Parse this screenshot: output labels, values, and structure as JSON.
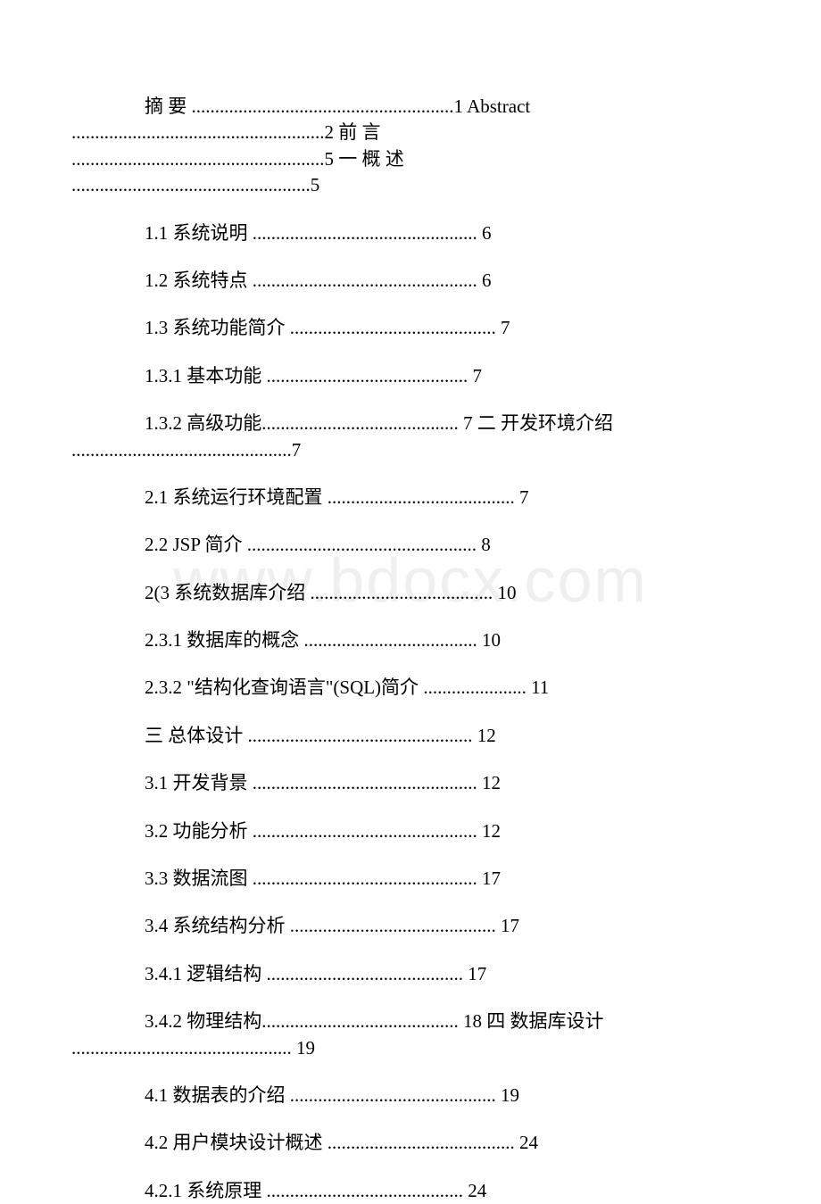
{
  "watermark": "www.bdocx.com",
  "group1": {
    "l1_label": "摘 要",
    "l1_dots": " ........................................................",
    "l1_page": "1",
    "l1b_label": " Abstract ",
    "l2_dots": "......................................................",
    "l2_page": "2",
    "l2b_label": " 前 言 ",
    "l3_dots": "......................................................",
    "l3_page": "5",
    "l3b_label": " 一 概 述 ",
    "l4_dots": "...................................................",
    "l4_page": "5"
  },
  "e11": {
    "label": "1.1 系统说明 ",
    "dots": "................................................ ",
    "page": "6"
  },
  "e12": {
    "label": "1.2 系统特点 ",
    "dots": "................................................ ",
    "page": "6"
  },
  "e13": {
    "label": "1.3 系统功能简介 ",
    "dots": "............................................ ",
    "page": "7"
  },
  "e131": {
    "label": "1.3.1 基本功能 ",
    "dots": "........................................... ",
    "page": "7"
  },
  "group2": {
    "a_label": "1.3.2 高级功能 ",
    "a_dots": ".......................................... ",
    "a_page": "7",
    "b_label": " 二 开发环境介绍 ",
    "c_dots": "...............................................",
    "c_page": "7"
  },
  "e21": {
    "label": "2.1 系统运行环境配置 ",
    "dots": "........................................ ",
    "page": "7"
  },
  "e22": {
    "label": "2.2 JSP 简介 ",
    "dots": "................................................. ",
    "page": "8"
  },
  "e23": {
    "label": "2(3 系统数据库介绍 ",
    "dots": "....................................... ",
    "page": "10"
  },
  "e231": {
    "label": "2.3.1 数据库的概念 ",
    "dots": "..................................... ",
    "page": "10"
  },
  "e232": {
    "label": "2.3.2 \"结构化查询语言\"(SQL)简介 ",
    "dots": "...................... ",
    "page": "11"
  },
  "e3": {
    "label": "三 总体设计 ",
    "dots": "................................................ ",
    "page": "12"
  },
  "e31": {
    "label": "3.1 开发背景 ",
    "dots": "................................................ ",
    "page": "12"
  },
  "e32": {
    "label": "3.2 功能分析 ",
    "dots": "................................................ ",
    "page": "12"
  },
  "e33": {
    "label": "3.3 数据流图 ",
    "dots": "................................................ ",
    "page": "17"
  },
  "e34": {
    "label": "3.4 系统结构分析 ",
    "dots": "............................................ ",
    "page": "17"
  },
  "e341": {
    "label": "3.4.1 逻辑结构 ",
    "dots": ".......................................... ",
    "page": "17"
  },
  "group3": {
    "a_label": "3.4.2 物理结构 ",
    "a_dots": ".......................................... ",
    "a_page": "18",
    "b_label": " 四 数据库设计 ",
    "c_dots": "............................................... ",
    "c_page": "19"
  },
  "e41": {
    "label": "4.1 数据表的介绍 ",
    "dots": "............................................ ",
    "page": "19"
  },
  "e42": {
    "label": "4.2 用户模块设计概述 ",
    "dots": "........................................ ",
    "page": "24"
  },
  "e421": {
    "label": "4.2.1 系统原理 ",
    "dots": ".......................................... ",
    "page": "24"
  }
}
